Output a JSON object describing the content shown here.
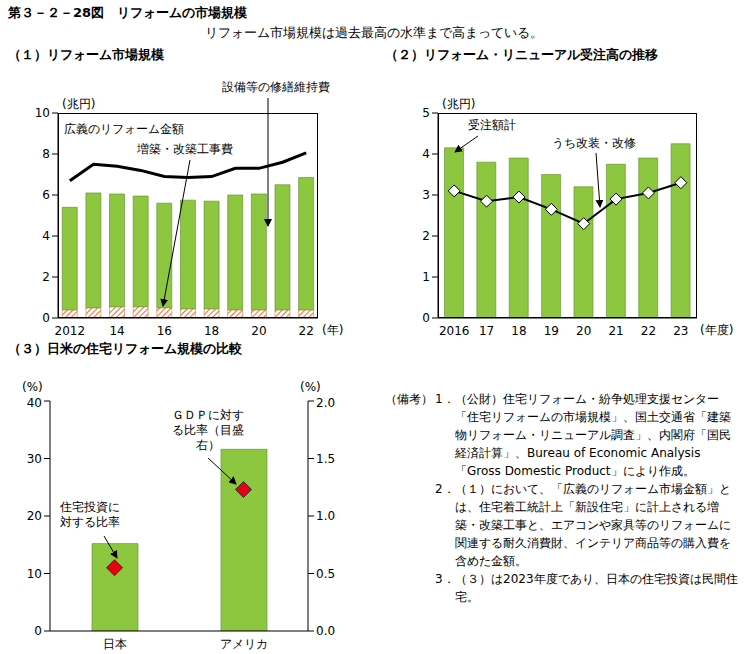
{
  "title": "第３－２－28図　リフォームの市場規模",
  "subtitle": "リフォーム市場規模は過去最高の水準まで高まっている。",
  "chart_data": [
    {
      "type": "bar",
      "title": "（１）リフォーム市場規模",
      "stacked": true,
      "categories": [
        "2012",
        null,
        "14",
        null,
        "16",
        null,
        "18",
        null,
        "20",
        null,
        "22"
      ],
      "x_label": "(年)",
      "y_label": "(兆円)",
      "ylim": [
        0,
        10
      ],
      "yticks": [
        0,
        2,
        4,
        6,
        8,
        10
      ],
      "series": [
        {
          "name": "増築・改築工事費",
          "type": "bar",
          "color": "#e8743b",
          "values": [
            0.4,
            0.5,
            0.55,
            0.55,
            0.5,
            0.45,
            0.45,
            0.4,
            0.4,
            0.4,
            0.4
          ]
        },
        {
          "name": "設備等の修繕維持費",
          "type": "bar",
          "color": "#8dc63f",
          "values": [
            5.0,
            5.6,
            5.5,
            5.4,
            5.1,
            5.3,
            5.25,
            5.6,
            5.65,
            6.1,
            6.45
          ]
        },
        {
          "name": "広義のリフォーム金額",
          "type": "line",
          "color": "#000000",
          "values": [
            6.7,
            7.5,
            7.4,
            7.2,
            6.9,
            6.85,
            6.9,
            7.3,
            7.3,
            7.6,
            8.05
          ]
        }
      ]
    },
    {
      "type": "bar",
      "title": "（２）リフォーム・リニューアル受注高の推移",
      "categories": [
        "2016",
        "17",
        "18",
        "19",
        "20",
        "21",
        "22",
        "23"
      ],
      "x_label": "(年度)",
      "y_label": "(兆円)",
      "ylim": [
        0,
        5
      ],
      "yticks": [
        0,
        1,
        2,
        3,
        4,
        5
      ],
      "series": [
        {
          "name": "受注額計",
          "type": "bar",
          "color": "#8dc63f",
          "values": [
            4.15,
            3.8,
            3.9,
            3.5,
            3.2,
            3.75,
            3.9,
            4.25
          ]
        },
        {
          "name": "うち改装・改修",
          "type": "line",
          "marker": "diamond",
          "color": "#000000",
          "values": [
            3.1,
            2.85,
            2.95,
            2.65,
            2.3,
            2.9,
            3.05,
            3.3
          ]
        }
      ]
    },
    {
      "type": "bar",
      "title": "（３）日米の住宅リフォーム規模の比較",
      "categories": [
        "日本",
        "アメリカ"
      ],
      "y_label": "(%)",
      "y2_label": "(%)",
      "ylim": [
        0,
        40
      ],
      "yticks": [
        0,
        10,
        20,
        30,
        40
      ],
      "y2lim": [
        0,
        2
      ],
      "y2ticks": [
        {
          "value": 0,
          "label": "0.0"
        },
        0.5,
        {
          "value": 1,
          "label": "1.0"
        },
        1.5,
        {
          "value": 2,
          "label": "2.0"
        }
      ],
      "series": [
        {
          "name": "住宅投資に対する比率",
          "type": "bar",
          "color": "#8dc63f",
          "values": [
            15.2,
            31.6
          ]
        },
        {
          "name": "ＧＤＰに対する比率（目盛右）",
          "type": "scatter",
          "marker": "diamond",
          "axis": "y2",
          "color": "#e60012",
          "values": [
            0.55,
            1.23
          ]
        }
      ]
    }
  ],
  "notes": {
    "heading": "（備考）",
    "items": [
      {
        "label": "1．",
        "text": "（公財）住宅リフォーム・紛争処理支援センター「住宅リフォームの市場規模」、国土交通省「建築物リフォーム・リニューアル調査」、内閣府「国民経済計算」、Bureau of Economic Analysis「Gross Domestic Product」により作成。"
      },
      {
        "label": "2．",
        "text": "（１）において、「広義のリフォーム市場金額」とは、住宅着工統計上「新設住宅」に計上される増築・改築工事と、エアコンや家具等のリフォームに関連する耐久消費財、インテリア商品等の購入費を含めた金額。"
      },
      {
        "label": "3．",
        "text": "（３）は2023年度であり、日本の住宅投資は民間住宅。"
      }
    ]
  }
}
